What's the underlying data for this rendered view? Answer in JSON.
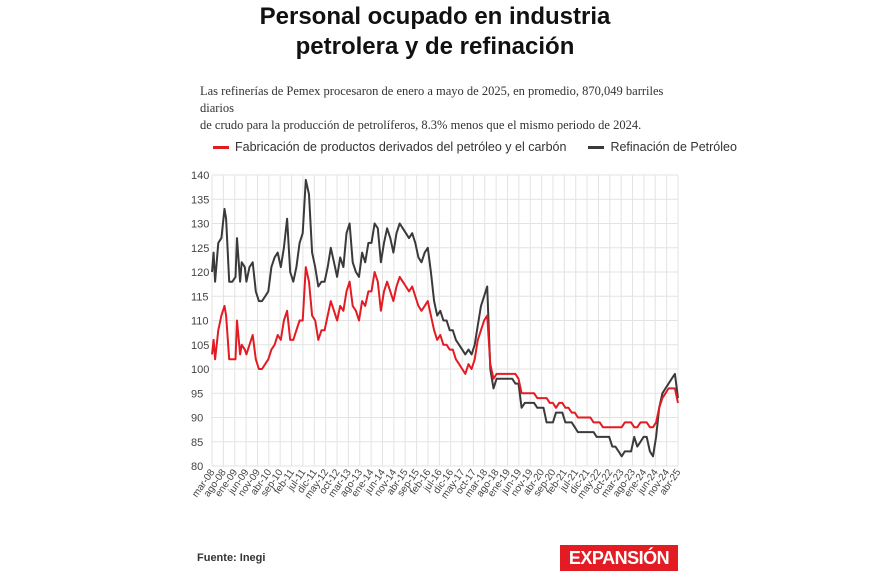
{
  "header": {
    "title_line1": "Personal ocupado en industria",
    "title_line2": "petrolera y de refinación",
    "subtitle_line1": "Las refinerías de Pemex procesaron de enero a mayo de 2025, en promedio, 870,049 barriles diarios",
    "subtitle_line2": "de crudo para la producción de petrolíferos, 8.3% menos que el mismo periodo de 2024."
  },
  "footer": {
    "source": "Fuente: Inegi",
    "brand": "EXPANSIÓN"
  },
  "colors": {
    "series_red": "#e31b23",
    "series_dark": "#3a3a3a",
    "grid": "#e3e3e3",
    "brand": "#e31b23"
  },
  "chart_data": {
    "type": "line",
    "title": "Personal ocupado en industria petrolera y de refinación",
    "ylim": [
      80,
      140
    ],
    "y_ticks": [
      80,
      85,
      90,
      95,
      100,
      105,
      110,
      115,
      120,
      125,
      130,
      135,
      140
    ],
    "grid": true,
    "legend_position": "top-left",
    "x_labels": [
      "mar-08",
      "ago-08",
      "ene-09",
      "jun-09",
      "nov-09",
      "abr-10",
      "sep-10",
      "feb-11",
      "jul-11",
      "dic-11",
      "may-12",
      "oct-12",
      "mar-13",
      "ago-13",
      "ene-14",
      "jun-14",
      "nov-14",
      "abr-15",
      "sep-15",
      "feb-16",
      "jul-16",
      "dic-16",
      "may-17",
      "oct-17",
      "mar-18",
      "ago-18",
      "ene-19",
      "jun-19",
      "nov-19",
      "abr-20",
      "sep-20",
      "feb-21",
      "jul-21",
      "dic-21",
      "may-22",
      "oct-22",
      "mar-23",
      "ago-23",
      "ene-24",
      "jun-24",
      "nov-24",
      "abr-25"
    ],
    "series": [
      {
        "name": "Fabricación de productos derivados del petróleo y el carbón",
        "color": "#e31b23",
        "points": [
          [
            0,
            103
          ],
          [
            1,
            106
          ],
          [
            2,
            102
          ],
          [
            4,
            108
          ],
          [
            6,
            111
          ],
          [
            8,
            113
          ],
          [
            9,
            111
          ],
          [
            11,
            102
          ],
          [
            13,
            102
          ],
          [
            15,
            102
          ],
          [
            16,
            110
          ],
          [
            18,
            103
          ],
          [
            19,
            105
          ],
          [
            21,
            104
          ],
          [
            22,
            103
          ],
          [
            24,
            105
          ],
          [
            26,
            107
          ],
          [
            28,
            102
          ],
          [
            30,
            100
          ],
          [
            32,
            100
          ],
          [
            34,
            101
          ],
          [
            36,
            102
          ],
          [
            38,
            104
          ],
          [
            40,
            105
          ],
          [
            42,
            107
          ],
          [
            44,
            106
          ],
          [
            46,
            110
          ],
          [
            48,
            112
          ],
          [
            50,
            106
          ],
          [
            52,
            106
          ],
          [
            54,
            108
          ],
          [
            56,
            110
          ],
          [
            58,
            110
          ],
          [
            60,
            121
          ],
          [
            62,
            118
          ],
          [
            64,
            111
          ],
          [
            66,
            110
          ],
          [
            68,
            106
          ],
          [
            70,
            108
          ],
          [
            72,
            108
          ],
          [
            74,
            111
          ],
          [
            76,
            114
          ],
          [
            78,
            112
          ],
          [
            80,
            110
          ],
          [
            82,
            113
          ],
          [
            84,
            112
          ],
          [
            86,
            116
          ],
          [
            88,
            118
          ],
          [
            90,
            113
          ],
          [
            92,
            112
          ],
          [
            94,
            110
          ],
          [
            96,
            114
          ],
          [
            98,
            113
          ],
          [
            100,
            116
          ],
          [
            102,
            116
          ],
          [
            104,
            120
          ],
          [
            106,
            118
          ],
          [
            108,
            112
          ],
          [
            110,
            116
          ],
          [
            112,
            118
          ],
          [
            114,
            116
          ],
          [
            116,
            114
          ],
          [
            118,
            117
          ],
          [
            120,
            119
          ],
          [
            122,
            118
          ],
          [
            124,
            117
          ],
          [
            126,
            116
          ],
          [
            128,
            117
          ],
          [
            130,
            115
          ],
          [
            132,
            113
          ],
          [
            134,
            112
          ],
          [
            136,
            113
          ],
          [
            138,
            114
          ],
          [
            140,
            111
          ],
          [
            142,
            108
          ],
          [
            144,
            106
          ],
          [
            146,
            107
          ],
          [
            148,
            105
          ],
          [
            150,
            105
          ],
          [
            152,
            104
          ],
          [
            154,
            104
          ],
          [
            156,
            102
          ],
          [
            158,
            101
          ],
          [
            160,
            100
          ],
          [
            162,
            99
          ],
          [
            164,
            101
          ],
          [
            166,
            100
          ],
          [
            168,
            102
          ],
          [
            170,
            106
          ],
          [
            172,
            108
          ],
          [
            174,
            110
          ],
          [
            176,
            111
          ],
          [
            178,
            101
          ],
          [
            180,
            98
          ],
          [
            182,
            99
          ],
          [
            184,
            99
          ],
          [
            186,
            99
          ],
          [
            188,
            99
          ],
          [
            190,
            99
          ],
          [
            192,
            99
          ],
          [
            194,
            99
          ],
          [
            196,
            98
          ],
          [
            198,
            95
          ],
          [
            200,
            95
          ],
          [
            202,
            95
          ],
          [
            204,
            95
          ],
          [
            206,
            95
          ],
          [
            208,
            94
          ],
          [
            210,
            94
          ],
          [
            212,
            94
          ],
          [
            214,
            94
          ],
          [
            216,
            93
          ],
          [
            218,
            93
          ],
          [
            220,
            92
          ],
          [
            222,
            93
          ],
          [
            224,
            93
          ],
          [
            226,
            92
          ],
          [
            228,
            92
          ],
          [
            230,
            91
          ],
          [
            232,
            91
          ],
          [
            234,
            90
          ],
          [
            236,
            90
          ],
          [
            238,
            90
          ],
          [
            240,
            90
          ],
          [
            242,
            90
          ],
          [
            244,
            89
          ],
          [
            246,
            89
          ],
          [
            248,
            89
          ],
          [
            250,
            88
          ],
          [
            252,
            88
          ],
          [
            254,
            88
          ],
          [
            256,
            88
          ],
          [
            258,
            88
          ],
          [
            260,
            88
          ],
          [
            262,
            88
          ],
          [
            264,
            89
          ],
          [
            266,
            89
          ],
          [
            268,
            89
          ],
          [
            270,
            88
          ],
          [
            272,
            88
          ],
          [
            274,
            89
          ],
          [
            276,
            89
          ],
          [
            278,
            89
          ],
          [
            280,
            88
          ],
          [
            282,
            88
          ],
          [
            284,
            89
          ],
          [
            286,
            92
          ],
          [
            288,
            94
          ],
          [
            290,
            95
          ],
          [
            292,
            96
          ],
          [
            294,
            96
          ],
          [
            296,
            96
          ],
          [
            298,
            93
          ]
        ]
      },
      {
        "name": "Refinación de Petróleo",
        "color": "#3a3a3a",
        "points": [
          [
            0,
            120
          ],
          [
            1,
            124
          ],
          [
            2,
            118
          ],
          [
            4,
            126
          ],
          [
            6,
            127
          ],
          [
            8,
            133
          ],
          [
            9,
            131
          ],
          [
            11,
            118
          ],
          [
            13,
            118
          ],
          [
            15,
            119
          ],
          [
            16,
            127
          ],
          [
            18,
            118
          ],
          [
            19,
            122
          ],
          [
            21,
            121
          ],
          [
            22,
            118
          ],
          [
            24,
            121
          ],
          [
            26,
            122
          ],
          [
            28,
            116
          ],
          [
            30,
            114
          ],
          [
            32,
            114
          ],
          [
            34,
            115
          ],
          [
            36,
            116
          ],
          [
            38,
            121
          ],
          [
            40,
            123
          ],
          [
            42,
            124
          ],
          [
            44,
            121
          ],
          [
            46,
            125
          ],
          [
            48,
            131
          ],
          [
            50,
            120
          ],
          [
            52,
            118
          ],
          [
            54,
            121
          ],
          [
            56,
            126
          ],
          [
            58,
            128
          ],
          [
            60,
            139
          ],
          [
            62,
            136
          ],
          [
            64,
            124
          ],
          [
            66,
            121
          ],
          [
            68,
            117
          ],
          [
            70,
            118
          ],
          [
            72,
            118
          ],
          [
            74,
            121
          ],
          [
            76,
            125
          ],
          [
            78,
            122
          ],
          [
            80,
            119
          ],
          [
            82,
            123
          ],
          [
            84,
            121
          ],
          [
            86,
            128
          ],
          [
            88,
            130
          ],
          [
            90,
            122
          ],
          [
            92,
            120
          ],
          [
            94,
            119
          ],
          [
            96,
            124
          ],
          [
            98,
            122
          ],
          [
            100,
            126
          ],
          [
            102,
            126
          ],
          [
            104,
            130
          ],
          [
            106,
            129
          ],
          [
            108,
            122
          ],
          [
            110,
            126
          ],
          [
            112,
            129
          ],
          [
            114,
            127
          ],
          [
            116,
            124
          ],
          [
            118,
            128
          ],
          [
            120,
            130
          ],
          [
            122,
            129
          ],
          [
            124,
            128
          ],
          [
            126,
            127
          ],
          [
            128,
            128
          ],
          [
            130,
            126
          ],
          [
            132,
            123
          ],
          [
            134,
            122
          ],
          [
            136,
            124
          ],
          [
            138,
            125
          ],
          [
            140,
            120
          ],
          [
            142,
            114
          ],
          [
            144,
            111
          ],
          [
            146,
            112
          ],
          [
            148,
            110
          ],
          [
            150,
            110
          ],
          [
            152,
            108
          ],
          [
            154,
            108
          ],
          [
            156,
            106
          ],
          [
            158,
            105
          ],
          [
            160,
            104
          ],
          [
            162,
            103
          ],
          [
            164,
            104
          ],
          [
            166,
            103
          ],
          [
            168,
            105
          ],
          [
            170,
            109
          ],
          [
            172,
            113
          ],
          [
            174,
            115
          ],
          [
            176,
            117
          ],
          [
            178,
            100
          ],
          [
            180,
            96
          ],
          [
            182,
            98
          ],
          [
            184,
            98
          ],
          [
            186,
            98
          ],
          [
            188,
            98
          ],
          [
            190,
            98
          ],
          [
            192,
            98
          ],
          [
            194,
            97
          ],
          [
            196,
            97
          ],
          [
            198,
            92
          ],
          [
            200,
            93
          ],
          [
            202,
            93
          ],
          [
            204,
            93
          ],
          [
            206,
            93
          ],
          [
            208,
            92
          ],
          [
            210,
            92
          ],
          [
            212,
            92
          ],
          [
            214,
            89
          ],
          [
            216,
            89
          ],
          [
            218,
            89
          ],
          [
            220,
            91
          ],
          [
            222,
            91
          ],
          [
            224,
            91
          ],
          [
            226,
            89
          ],
          [
            228,
            89
          ],
          [
            230,
            89
          ],
          [
            232,
            88
          ],
          [
            234,
            87
          ],
          [
            236,
            87
          ],
          [
            238,
            87
          ],
          [
            240,
            87
          ],
          [
            242,
            87
          ],
          [
            244,
            87
          ],
          [
            246,
            86
          ],
          [
            248,
            86
          ],
          [
            250,
            86
          ],
          [
            252,
            86
          ],
          [
            254,
            86
          ],
          [
            256,
            84
          ],
          [
            258,
            84
          ],
          [
            260,
            83
          ],
          [
            262,
            82
          ],
          [
            264,
            83
          ],
          [
            266,
            83
          ],
          [
            268,
            83
          ],
          [
            270,
            86
          ],
          [
            272,
            84
          ],
          [
            274,
            85
          ],
          [
            276,
            86
          ],
          [
            278,
            86
          ],
          [
            280,
            83
          ],
          [
            282,
            82
          ],
          [
            284,
            86
          ],
          [
            286,
            92
          ],
          [
            288,
            95
          ],
          [
            290,
            96
          ],
          [
            292,
            97
          ],
          [
            294,
            98
          ],
          [
            296,
            99
          ],
          [
            298,
            94
          ]
        ]
      }
    ],
    "x_count": 299
  }
}
